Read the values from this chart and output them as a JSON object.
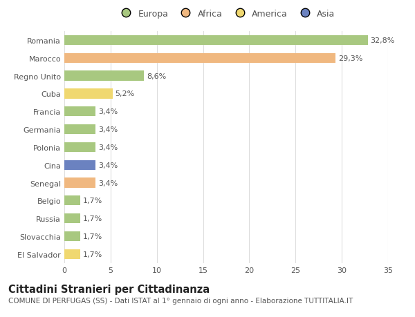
{
  "countries": [
    "Romania",
    "Marocco",
    "Regno Unito",
    "Cuba",
    "Francia",
    "Germania",
    "Polonia",
    "Cina",
    "Senegal",
    "Belgio",
    "Russia",
    "Slovacchia",
    "El Salvador"
  ],
  "values": [
    32.8,
    29.3,
    8.6,
    5.2,
    3.4,
    3.4,
    3.4,
    3.4,
    3.4,
    1.7,
    1.7,
    1.7,
    1.7
  ],
  "labels": [
    "32,8%",
    "29,3%",
    "8,6%",
    "5,2%",
    "3,4%",
    "3,4%",
    "3,4%",
    "3,4%",
    "3,4%",
    "1,7%",
    "1,7%",
    "1,7%",
    "1,7%"
  ],
  "colors": [
    "#a8c880",
    "#f0b880",
    "#a8c880",
    "#f0d870",
    "#a8c880",
    "#a8c880",
    "#a8c880",
    "#6b82c0",
    "#f0b880",
    "#a8c880",
    "#a8c880",
    "#a8c880",
    "#f0d870"
  ],
  "legend_labels": [
    "Europa",
    "Africa",
    "America",
    "Asia"
  ],
  "legend_colors": [
    "#a8c880",
    "#f0b880",
    "#f0d870",
    "#6b82c0"
  ],
  "title": "Cittadini Stranieri per Cittadinanza",
  "subtitle": "COMUNE DI PERFUGAS (SS) - Dati ISTAT al 1° gennaio di ogni anno - Elaborazione TUTTITALIA.IT",
  "xlim": [
    0,
    35
  ],
  "xticks": [
    0,
    5,
    10,
    15,
    20,
    25,
    30,
    35
  ],
  "background_color": "#ffffff",
  "grid_color": "#dddddd",
  "bar_height": 0.55,
  "label_fontsize": 8,
  "tick_fontsize": 8,
  "title_fontsize": 10.5,
  "subtitle_fontsize": 7.5
}
